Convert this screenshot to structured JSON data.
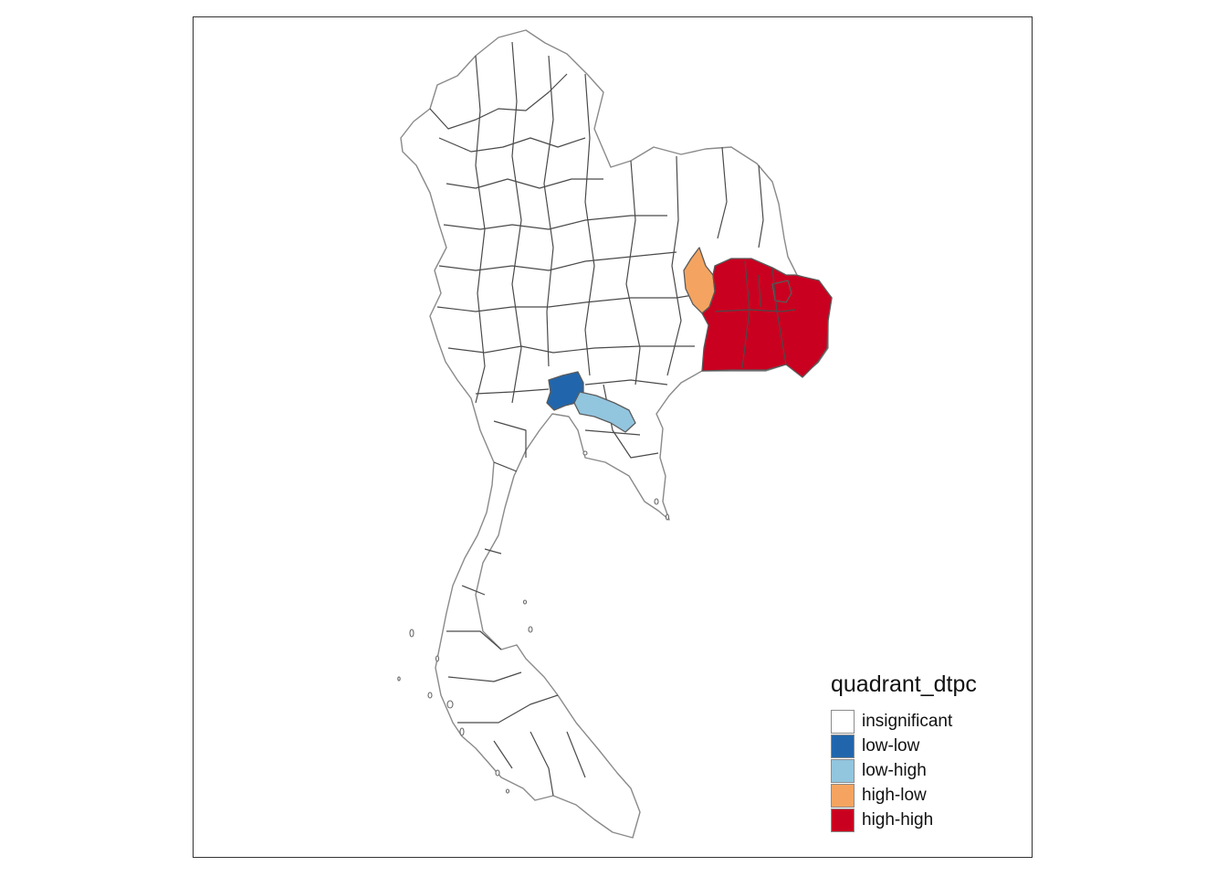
{
  "legend": {
    "title": "quadrant_dtpc",
    "classes": [
      {
        "label": "insignificant",
        "color": "#ffffff"
      },
      {
        "label": "low-low",
        "color": "#2166ac"
      },
      {
        "label": "low-high",
        "color": "#92c5de"
      },
      {
        "label": "high-low",
        "color": "#f4a460"
      },
      {
        "label": "high-high",
        "color": "#ca0020"
      }
    ]
  },
  "map": {
    "highlighted_regions": [
      {
        "class": "high-low",
        "color": "#f4a460"
      },
      {
        "class": "high-high",
        "color": "#ca0020"
      },
      {
        "class": "low-low",
        "color": "#2166ac"
      },
      {
        "class": "low-high",
        "color": "#92c5de"
      }
    ]
  }
}
